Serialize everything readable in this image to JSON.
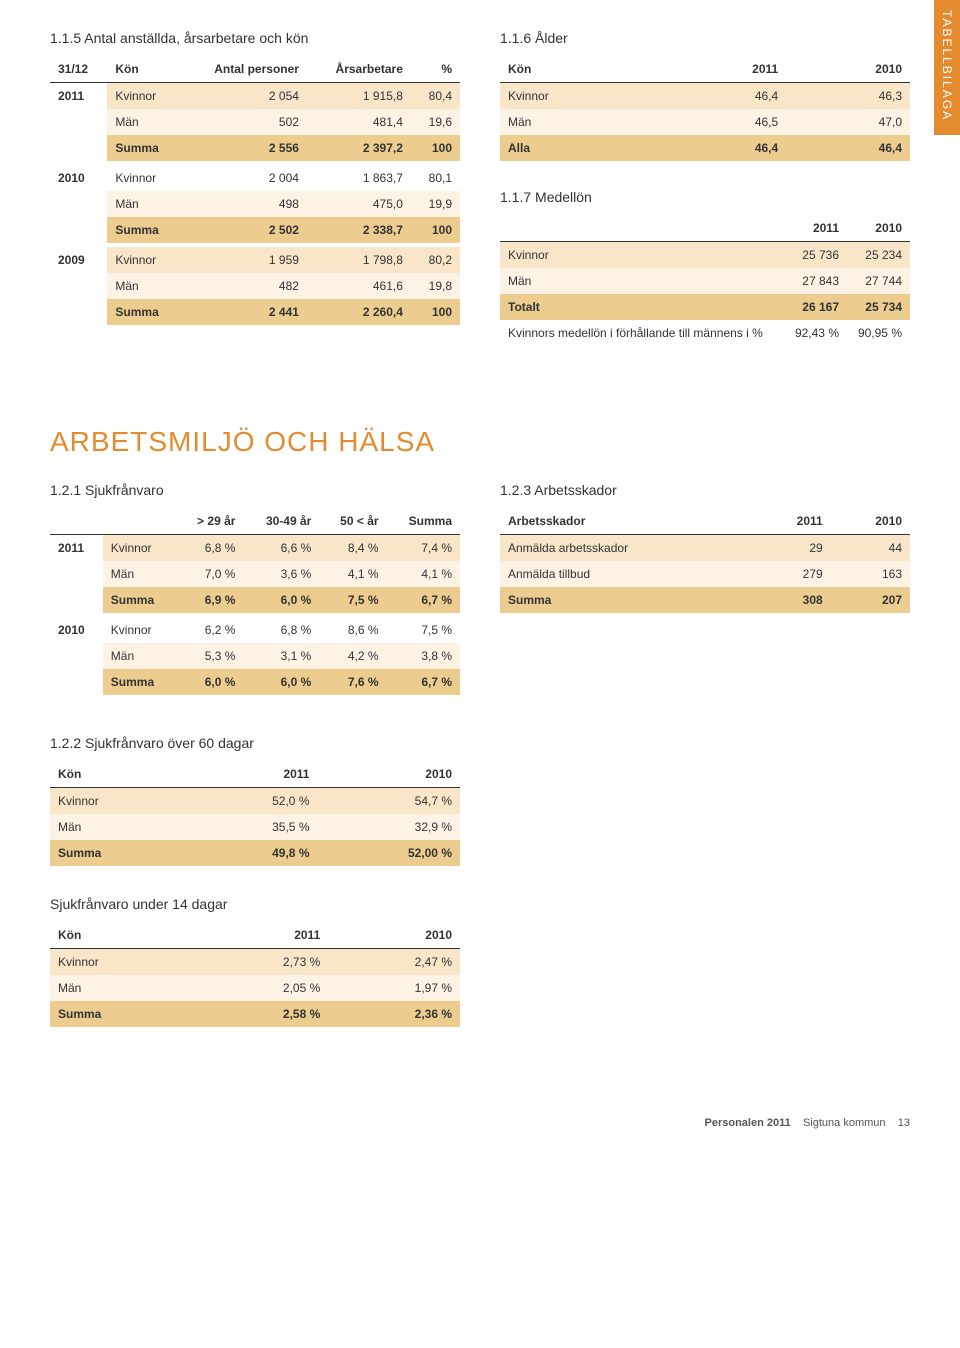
{
  "side_tab": "TABELLBILAGA",
  "section115": {
    "title": "1.1.5 Antal anställda, årsarbetare och kön",
    "headers": [
      "31/12",
      "Kön",
      "Antal personer",
      "Årsarbetare",
      "%"
    ],
    "groups": [
      {
        "year": "2011",
        "rows": [
          {
            "cls": "kvinnor",
            "label": "Kvinnor",
            "v": [
              "2 054",
              "1 915,8",
              "80,4"
            ]
          },
          {
            "cls": "man",
            "label": "Män",
            "v": [
              "502",
              "481,4",
              "19,6"
            ]
          },
          {
            "cls": "summa",
            "label": "Summa",
            "v": [
              "2 556",
              "2 397,2",
              "100"
            ]
          }
        ]
      },
      {
        "year": "2010",
        "rows": [
          {
            "cls": "plain",
            "label": "Kvinnor",
            "v": [
              "2 004",
              "1 863,7",
              "80,1"
            ]
          },
          {
            "cls": "man",
            "label": "Män",
            "v": [
              "498",
              "475,0",
              "19,9"
            ]
          },
          {
            "cls": "summa",
            "label": "Summa",
            "v": [
              "2 502",
              "2 338,7",
              "100"
            ]
          }
        ]
      },
      {
        "year": "2009",
        "rows": [
          {
            "cls": "kvinnor",
            "label": "Kvinnor",
            "v": [
              "1 959",
              "1 798,8",
              "80,2"
            ]
          },
          {
            "cls": "man",
            "label": "Män",
            "v": [
              "482",
              "461,6",
              "19,8"
            ]
          },
          {
            "cls": "summa",
            "label": "Summa",
            "v": [
              "2 441",
              "2 260,4",
              "100"
            ]
          }
        ]
      }
    ]
  },
  "section116": {
    "title": "1.1.6 Ålder",
    "headers": [
      "Kön",
      "2011",
      "2010"
    ],
    "rows": [
      {
        "cls": "kvinnor",
        "label": "Kvinnor",
        "v": [
          "46,4",
          "46,3"
        ]
      },
      {
        "cls": "man",
        "label": "Män",
        "v": [
          "46,5",
          "47,0"
        ]
      },
      {
        "cls": "summa",
        "label": "Alla",
        "v": [
          "46,4",
          "46,4"
        ]
      }
    ]
  },
  "section117": {
    "title": "1.1.7 Medellön",
    "headers": [
      "",
      "2011",
      "2010"
    ],
    "rows": [
      {
        "cls": "kvinnor",
        "label": "Kvinnor",
        "v": [
          "25 736",
          "25 234"
        ]
      },
      {
        "cls": "man",
        "label": "Män",
        "v": [
          "27 843",
          "27 744"
        ]
      },
      {
        "cls": "summa",
        "label": "Totalt",
        "v": [
          "26 167",
          "25 734"
        ]
      },
      {
        "cls": "plain",
        "label": "Kvinnors medellön i förhållande till männens i %",
        "v": [
          "92,43 %",
          "90,95 %"
        ]
      }
    ]
  },
  "big_heading": "ARBETSMILJÖ OCH HÄLSA",
  "section121": {
    "title": "1.2.1 Sjukfrånvaro",
    "headers": [
      "",
      "",
      "> 29 år",
      "30-49 år",
      "50 < år",
      "Summa"
    ],
    "groups": [
      {
        "year": "2011",
        "rows": [
          {
            "cls": "kvinnor",
            "label": "Kvinnor",
            "v": [
              "6,8 %",
              "6,6 %",
              "8,4 %",
              "7,4 %"
            ]
          },
          {
            "cls": "man",
            "label": "Män",
            "v": [
              "7,0 %",
              "3,6 %",
              "4,1 %",
              "4,1 %"
            ]
          },
          {
            "cls": "summa",
            "label": "Summa",
            "v": [
              "6,9 %",
              "6,0 %",
              "7,5 %",
              "6,7 %"
            ]
          }
        ]
      },
      {
        "year": "2010",
        "rows": [
          {
            "cls": "plain",
            "label": "Kvinnor",
            "v": [
              "6,2 %",
              "6,8 %",
              "8,6 %",
              "7,5 %"
            ]
          },
          {
            "cls": "man",
            "label": "Män",
            "v": [
              "5,3 %",
              "3,1 %",
              "4,2 %",
              "3,8 %"
            ]
          },
          {
            "cls": "summa",
            "label": "Summa",
            "v": [
              "6,0 %",
              "6,0 %",
              "7,6 %",
              "6,7 %"
            ]
          }
        ]
      }
    ]
  },
  "section123": {
    "title": "1.2.3 Arbetsskador",
    "headers": [
      "Arbetsskador",
      "2011",
      "2010"
    ],
    "rows": [
      {
        "cls": "kvinnor",
        "label": "Anmälda arbetsskador",
        "v": [
          "29",
          "44"
        ]
      },
      {
        "cls": "man",
        "label": "Anmälda tillbud",
        "v": [
          "279",
          "163"
        ]
      },
      {
        "cls": "summa",
        "label": "Summa",
        "v": [
          "308",
          "207"
        ]
      }
    ]
  },
  "section122": {
    "title": "1.2.2 Sjukfrånvaro över 60 dagar",
    "headers": [
      "Kön",
      "2011",
      "2010"
    ],
    "rows": [
      {
        "cls": "kvinnor",
        "label": "Kvinnor",
        "v": [
          "52,0 %",
          "54,7 %"
        ]
      },
      {
        "cls": "man",
        "label": "Män",
        "v": [
          "35,5 %",
          "32,9 %"
        ]
      },
      {
        "cls": "summa",
        "label": "Summa",
        "v": [
          "49,8 %",
          "52,00 %"
        ]
      }
    ]
  },
  "section_under14": {
    "title": "Sjukfrånvaro under 14 dagar",
    "headers": [
      "Kön",
      "2011",
      "2010"
    ],
    "rows": [
      {
        "cls": "kvinnor",
        "label": "Kvinnor",
        "v": [
          "2,73 %",
          "2,47 %"
        ]
      },
      {
        "cls": "man",
        "label": "Män",
        "v": [
          "2,05 %",
          "1,97 %"
        ]
      },
      {
        "cls": "summa",
        "label": "Summa",
        "v": [
          "2,58 %",
          "2,36 %"
        ]
      }
    ]
  },
  "footer": {
    "bold": "Personalen 2011",
    "rest": "Sigtuna kommun",
    "page": "13"
  },
  "colors": {
    "kvinnor": "#f9e6c9",
    "man": "#fcf3e4",
    "summa": "#edcd8f",
    "accent": "#e58b2f"
  }
}
